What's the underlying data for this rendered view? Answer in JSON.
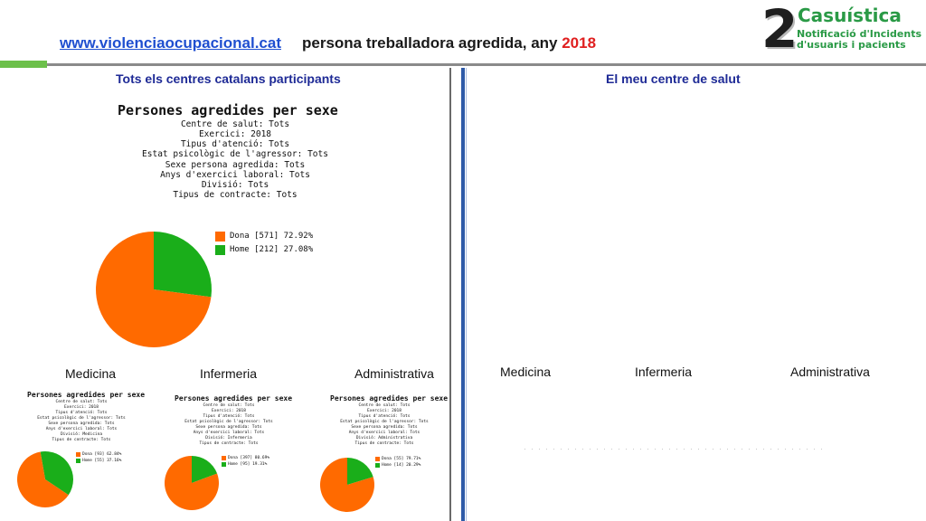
{
  "header": {
    "link": "www.violenciaocupacional.cat",
    "title": "persona treballadora agredida, any ",
    "year": "2018"
  },
  "logo": {
    "digit": "2",
    "title": "Casuística",
    "sub1": "Notificació d'Incidents",
    "sub2": "d'usuaris i pacients"
  },
  "sections": {
    "left_title": "Tots els centres catalans participants",
    "right_title": "El meu centre de salut"
  },
  "main_chart": {
    "title": "Persones agredides per sexe",
    "filters": [
      "Centre de salut: Tots",
      "Exercici: 2018",
      "Tipus d'atenció: Tots",
      "Estat psicològic de l'agressor: Tots",
      "Sexe persona agredida: Tots",
      "Anys d'exercici laboral: Tots",
      "Divisió: Tots",
      "Tipus de contracte: Tots"
    ]
  },
  "categories_left": [
    "Medicina",
    "Infermeria",
    "Administrativa"
  ],
  "categories_right": [
    "Medicina",
    "Infermeria",
    "Administrativa"
  ],
  "small_charts": [
    {
      "title": "Persones agredides per sexe",
      "filters": [
        "Centre de salut: Tots",
        "Exercici: 2018",
        "Tipus d'atenció: Tots",
        "Estat psicològic de l'agressor: Tots",
        "Sexe persona agredida: Tots",
        "Anys d'exercici laboral: Tots",
        "Divisió: Medicina",
        "Tipus de contracte: Tots"
      ]
    },
    {
      "title": "Persones agredides per sexe",
      "filters": [
        "Centre de salut: Tots",
        "Exercici: 2018",
        "Tipus d'atenció: Tots",
        "Estat psicològic de l'agressor: Tots",
        "Sexe persona agredida: Tots",
        "Anys d'exercici laboral: Tots",
        "Divisió: Infermeria",
        "Tipus de contracte: Tots"
      ]
    },
    {
      "title": "Persones agredides per sexe",
      "filters": [
        "Centre de salut: Tots",
        "Exercici: 2018",
        "Tipus d'atenció: Tots",
        "Estat psicològic de l'agressor: Tots",
        "Sexe persona agredida: Tots",
        "Anys d'exercici laboral: Tots",
        "Divisió: Administrativa",
        "Tipus de contracte: Tots"
      ]
    }
  ],
  "colors": {
    "dona": "#ff6a00",
    "home": "#1aae1a",
    "accent": "#1e2a96",
    "link": "#1f4fd0"
  },
  "chart_data": [
    {
      "type": "pie",
      "title": "Persones agredides per sexe",
      "categories": [
        "Dona",
        "Home"
      ],
      "values": [
        571,
        212
      ],
      "labels": [
        "Dona [571] 72.92%",
        "Home [212] 27.08%"
      ],
      "legend": "right"
    },
    {
      "type": "pie",
      "title": "Persones agredides per sexe",
      "categories": [
        "Dona",
        "Home"
      ],
      "values": [
        93,
        55
      ],
      "labels": [
        "Dona [93] 62.84%",
        "Home [55] 37.16%"
      ],
      "legend": "right"
    },
    {
      "type": "pie",
      "title": "Persones agredides per sexe",
      "categories": [
        "Dona",
        "Home"
      ],
      "values": [
        397,
        95
      ],
      "labels": [
        "Dona [397] 80.69%",
        "Home [95] 19.31%"
      ],
      "legend": "right"
    },
    {
      "type": "pie",
      "title": "Persones agredides per sexe",
      "categories": [
        "Dona",
        "Home"
      ],
      "values": [
        55,
        14
      ],
      "labels": [
        "Dona [55] 79.71%",
        "Home [14] 20.29%"
      ],
      "legend": "right"
    }
  ]
}
